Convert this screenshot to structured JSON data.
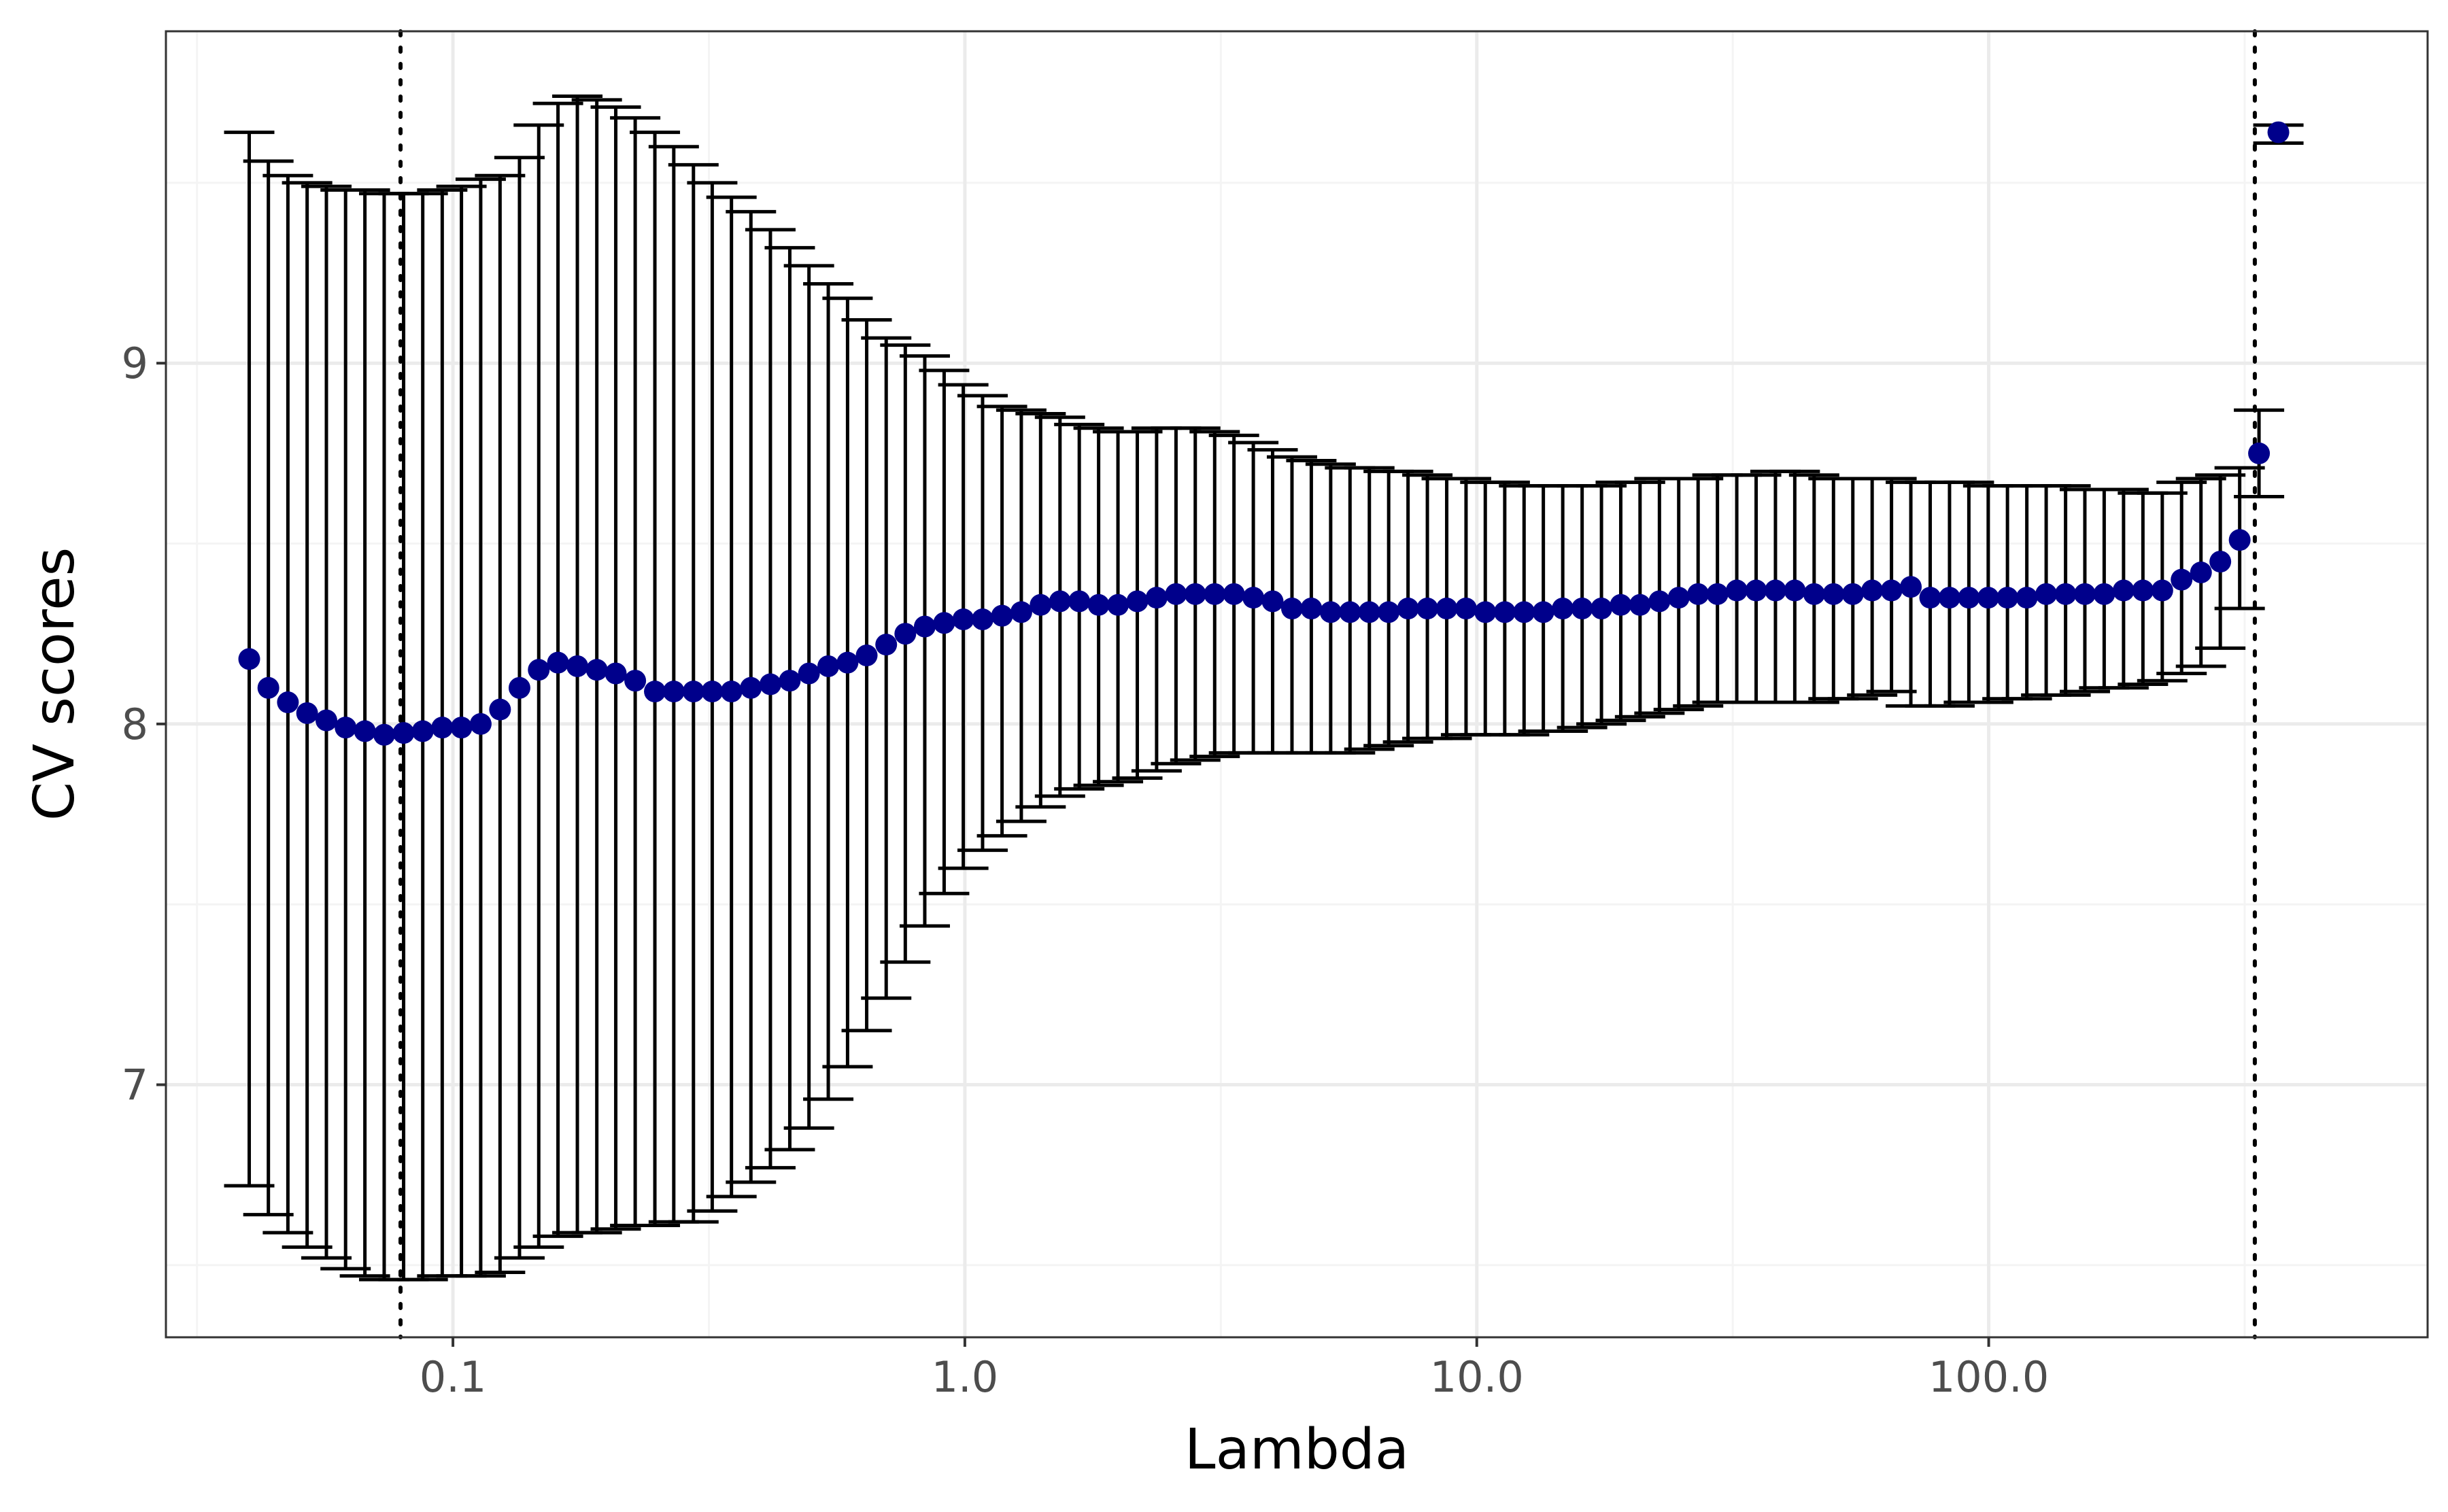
{
  "chart_data": {
    "type": "scatter",
    "title": "",
    "xlabel": "Lambda",
    "ylabel": "CV scores",
    "x_scale": "log10",
    "xlim": [
      0.0275,
      720
    ],
    "ylim": [
      6.3,
      9.92
    ],
    "x_ticks": [
      0.1,
      1.0,
      10.0,
      100.0
    ],
    "x_tick_labels": [
      "0.1",
      "1.0",
      "10.0",
      "100.0"
    ],
    "y_ticks": [
      7,
      8,
      9
    ],
    "y_tick_labels": [
      "7",
      "8",
      "9"
    ],
    "grid": true,
    "legend": "none",
    "colors": {
      "point": "#00008B",
      "errorbar": "#000000",
      "vline": "#000000",
      "panel_border": "#333333",
      "grid_major": "#ebebeb",
      "grid_minor": "#f4f4f4"
    },
    "vlines": [
      0.079,
      331
    ],
    "series": [
      {
        "x": [
          0.04,
          0.0436,
          0.0476,
          0.0519,
          0.0566,
          0.0617,
          0.0673,
          0.0734,
          0.0801,
          0.0873,
          0.0953,
          0.1039,
          0.1133,
          0.1236,
          0.1349,
          0.1471,
          0.1604,
          0.175,
          0.191,
          0.208,
          0.227,
          0.248,
          0.27,
          0.295,
          0.321,
          0.35,
          0.382,
          0.417,
          0.455,
          0.496,
          0.541,
          0.59,
          0.643,
          0.702,
          0.765,
          0.835,
          0.911,
          0.993,
          1.083,
          1.182,
          1.289,
          1.406,
          1.534,
          1.673,
          1.825,
          1.991,
          2.172,
          2.369,
          2.585,
          2.819,
          3.076,
          3.355,
          3.66,
          3.992,
          4.355,
          4.751,
          5.183,
          5.654,
          6.168,
          6.728,
          7.34,
          8.007,
          8.735,
          9.528,
          10.39,
          11.34,
          12.37,
          13.49,
          14.72,
          16.06,
          17.52,
          19.11,
          20.84,
          22.74,
          24.8,
          27.06,
          29.52,
          32.2,
          35.13,
          38.32,
          41.8,
          45.6,
          49.75,
          54.27,
          59.2,
          64.58,
          70.45,
          76.86,
          83.84,
          91.46,
          99.78,
          108.8,
          118.7,
          129.5,
          141.3,
          154.1,
          168.1,
          183.4,
          200.1,
          218.3,
          238.1,
          259.8,
          283.4,
          309.2,
          337.3,
          368.0
        ],
        "y": [
          8.18,
          8.1,
          8.06,
          8.03,
          8.01,
          7.99,
          7.98,
          7.97,
          7.975,
          7.98,
          7.99,
          7.99,
          8.0,
          8.04,
          8.1,
          8.15,
          8.17,
          8.16,
          8.15,
          8.14,
          8.12,
          8.09,
          8.09,
          8.09,
          8.09,
          8.09,
          8.1,
          8.11,
          8.12,
          8.14,
          8.16,
          8.17,
          8.19,
          8.22,
          8.25,
          8.27,
          8.28,
          8.29,
          8.29,
          8.3,
          8.31,
          8.33,
          8.34,
          8.34,
          8.33,
          8.33,
          8.34,
          8.35,
          8.36,
          8.36,
          8.36,
          8.36,
          8.35,
          8.34,
          8.32,
          8.32,
          8.31,
          8.31,
          8.31,
          8.31,
          8.32,
          8.32,
          8.32,
          8.32,
          8.31,
          8.31,
          8.31,
          8.31,
          8.32,
          8.32,
          8.32,
          8.33,
          8.33,
          8.34,
          8.35,
          8.36,
          8.36,
          8.37,
          8.37,
          8.37,
          8.37,
          8.36,
          8.36,
          8.36,
          8.37,
          8.37,
          8.38,
          8.35,
          8.35,
          8.35,
          8.35,
          8.35,
          8.35,
          8.36,
          8.36,
          8.36,
          8.36,
          8.37,
          8.37,
          8.37,
          8.4,
          8.42,
          8.45,
          8.51,
          8.75,
          9.64
        ],
        "upper": [
          9.64,
          9.56,
          9.52,
          9.5,
          9.49,
          9.48,
          9.48,
          9.47,
          9.47,
          9.47,
          9.48,
          9.49,
          9.51,
          9.52,
          9.57,
          9.66,
          9.72,
          9.74,
          9.73,
          9.71,
          9.68,
          9.64,
          9.6,
          9.55,
          9.5,
          9.46,
          9.42,
          9.37,
          9.32,
          9.27,
          9.22,
          9.18,
          9.12,
          9.07,
          9.05,
          9.02,
          8.98,
          8.94,
          8.91,
          8.88,
          8.87,
          8.86,
          8.85,
          8.83,
          8.82,
          8.81,
          8.81,
          8.82,
          8.82,
          8.82,
          8.81,
          8.8,
          8.78,
          8.76,
          8.74,
          8.73,
          8.72,
          8.71,
          8.71,
          8.7,
          8.7,
          8.69,
          8.68,
          8.68,
          8.67,
          8.67,
          8.66,
          8.66,
          8.66,
          8.66,
          8.66,
          8.67,
          8.67,
          8.68,
          8.68,
          8.68,
          8.69,
          8.69,
          8.69,
          8.7,
          8.7,
          8.69,
          8.68,
          8.68,
          8.68,
          8.68,
          8.67,
          8.67,
          8.67,
          8.67,
          8.66,
          8.66,
          8.66,
          8.66,
          8.66,
          8.65,
          8.65,
          8.65,
          8.64,
          8.64,
          8.67,
          8.68,
          8.69,
          8.71,
          8.87,
          9.66
        ],
        "lower": [
          6.72,
          6.64,
          6.59,
          6.55,
          6.52,
          6.49,
          6.47,
          6.46,
          6.46,
          6.46,
          6.47,
          6.47,
          6.47,
          6.48,
          6.52,
          6.55,
          6.58,
          6.59,
          6.59,
          6.6,
          6.61,
          6.61,
          6.62,
          6.62,
          6.65,
          6.69,
          6.73,
          6.77,
          6.82,
          6.88,
          6.96,
          7.05,
          7.15,
          7.24,
          7.34,
          7.44,
          7.53,
          7.6,
          7.65,
          7.69,
          7.73,
          7.77,
          7.8,
          7.82,
          7.83,
          7.84,
          7.85,
          7.87,
          7.89,
          7.9,
          7.91,
          7.92,
          7.92,
          7.92,
          7.92,
          7.92,
          7.92,
          7.92,
          7.93,
          7.94,
          7.95,
          7.96,
          7.96,
          7.97,
          7.97,
          7.97,
          7.97,
          7.98,
          7.98,
          7.99,
          8.0,
          8.01,
          8.02,
          8.03,
          8.04,
          8.05,
          8.06,
          8.06,
          8.06,
          8.06,
          8.06,
          8.06,
          8.07,
          8.07,
          8.08,
          8.09,
          8.05,
          8.05,
          8.05,
          8.06,
          8.06,
          8.07,
          8.07,
          8.08,
          8.08,
          8.09,
          8.1,
          8.1,
          8.11,
          8.12,
          8.14,
          8.16,
          8.21,
          8.32,
          8.63,
          9.61
        ]
      }
    ]
  }
}
